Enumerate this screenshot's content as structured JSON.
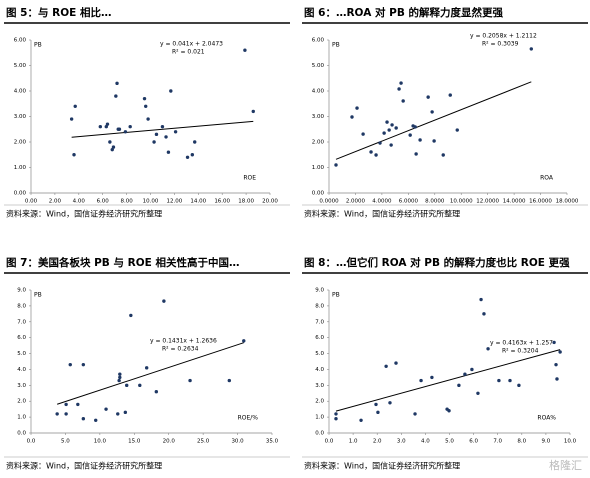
{
  "watermark": "格隆汇",
  "chart_data": [
    {
      "type": "scatter",
      "title": "图 5：与 ROE 相比…",
      "x_label": "ROE",
      "y_label": "PB",
      "color": "#1f3864",
      "source": "资料来源：Wind，国信证券经济研究所整理",
      "x": [
        3.4,
        3.7,
        3.6,
        5.8,
        6.3,
        6.4,
        6.6,
        6.8,
        6.9,
        7.2,
        7.1,
        7.3,
        7.4,
        7.9,
        8.3,
        9.5,
        9.6,
        9.8,
        10.3,
        10.5,
        11.0,
        11.3,
        11.5,
        11.7,
        12.1,
        13.1,
        13.5,
        13.7,
        17.9,
        18.6
      ],
      "values": [
        2.9,
        3.4,
        1.5,
        2.6,
        2.6,
        2.7,
        2.0,
        1.7,
        1.8,
        4.3,
        3.8,
        2.5,
        2.5,
        2.4,
        2.6,
        3.7,
        3.4,
        2.9,
        2.0,
        2.3,
        2.6,
        2.2,
        1.6,
        4.0,
        2.4,
        1.4,
        1.5,
        2.0,
        5.6,
        3.2
      ],
      "trendline": {
        "slope": 0.041,
        "intercept": 2.0473,
        "equation": "y = 0.041x + 2.0473",
        "r2": "R² = 0.021"
      },
      "xlim": [
        0,
        20
      ],
      "ylim": [
        0,
        6
      ],
      "xticks": [
        {
          "value": 0,
          "label": "0.00"
        },
        {
          "value": 2,
          "label": "2.00"
        },
        {
          "value": 4,
          "label": "4.00"
        },
        {
          "value": 6,
          "label": "6.00"
        },
        {
          "value": 8,
          "label": "8.00"
        },
        {
          "value": 10,
          "label": "10.00"
        },
        {
          "value": 12,
          "label": "12.00"
        },
        {
          "value": 14,
          "label": "14.00"
        },
        {
          "value": 16,
          "label": "16.00"
        },
        {
          "value": 18,
          "label": "18.00"
        },
        {
          "value": 20,
          "label": "20.00"
        }
      ],
      "yticks": [
        {
          "value": 0,
          "label": "0.00"
        },
        {
          "value": 1,
          "label": "1.00"
        },
        {
          "value": 2,
          "label": "2.00"
        },
        {
          "value": 3,
          "label": "3.00"
        },
        {
          "value": 4,
          "label": "4.00"
        },
        {
          "value": 5,
          "label": "5.00"
        },
        {
          "value": 6,
          "label": "6.00"
        }
      ]
    },
    {
      "type": "scatter",
      "title": "图 6：…ROA 对 PB 的解释力度显然更强",
      "x_label": "ROA",
      "y_label": "PB",
      "color": "#1f3864",
      "source": "资料来源：Wind，国信证券经济研究所整理",
      "x": [
        0.53,
        1.74,
        2.12,
        2.58,
        3.18,
        3.56,
        3.86,
        4.17,
        4.39,
        4.55,
        4.7,
        4.77,
        5.08,
        5.3,
        5.45,
        5.61,
        6.14,
        6.36,
        6.52,
        6.59,
        6.89,
        7.5,
        7.8,
        7.95,
        8.64,
        9.17,
        9.7,
        15.3
      ],
      "values": [
        1.1,
        2.98,
        3.33,
        2.31,
        1.61,
        1.49,
        1.96,
        2.35,
        2.78,
        2.47,
        1.88,
        2.67,
        2.55,
        4.08,
        4.31,
        3.61,
        2.27,
        2.63,
        2.59,
        1.53,
        2.08,
        3.76,
        3.18,
        2.04,
        1.49,
        3.84,
        2.47,
        5.65
      ],
      "trendline": {
        "slope": 0.2058,
        "intercept": 1.2112,
        "equation": "y = 0.2058x + 1.2112",
        "r2": "R² = 0.3039"
      },
      "xlim": [
        0,
        18
      ],
      "ylim": [
        0,
        6
      ],
      "xticks": [
        {
          "value": 0,
          "label": "0.0000"
        },
        {
          "value": 2,
          "label": "2.0000"
        },
        {
          "value": 4,
          "label": "4.0000"
        },
        {
          "value": 6,
          "label": "6.0000"
        },
        {
          "value": 8,
          "label": "8.0000"
        },
        {
          "value": 10,
          "label": "10.0000"
        },
        {
          "value": 12,
          "label": "12.0000"
        },
        {
          "value": 14,
          "label": "14.0000"
        },
        {
          "value": 16,
          "label": "16.0000"
        },
        {
          "value": 18,
          "label": "18.0000"
        }
      ],
      "yticks": [
        {
          "value": 0,
          "label": "0.00"
        },
        {
          "value": 1,
          "label": "1.00"
        },
        {
          "value": 2,
          "label": "2.00"
        },
        {
          "value": 3,
          "label": "3.00"
        },
        {
          "value": 4,
          "label": "4.00"
        },
        {
          "value": 5,
          "label": "5.00"
        },
        {
          "value": 6,
          "label": "6.00"
        }
      ]
    },
    {
      "type": "scatter",
      "title": "图 7：美国各板块 PB 与 ROE 相关性高于中国…",
      "x_label": "ROE/%",
      "y_label": "PB",
      "color": "#1f3864",
      "source": "资料来源：Wind，国信证券经济研究所整理",
      "x": [
        3.8,
        5.1,
        5.1,
        5.7,
        6.8,
        7.6,
        7.6,
        9.4,
        10.9,
        12.6,
        12.8,
        12.9,
        12.9,
        13.7,
        13.9,
        14.5,
        15.8,
        16.8,
        18.2,
        19.3,
        23.1,
        28.8,
        30.9
      ],
      "values": [
        1.2,
        1.8,
        1.2,
        4.3,
        1.8,
        4.3,
        0.9,
        0.8,
        1.5,
        1.2,
        3.3,
        3.7,
        3.5,
        1.3,
        3.0,
        7.4,
        3.0,
        4.1,
        2.6,
        8.3,
        3.3,
        3.3,
        5.8
      ],
      "trendline": {
        "slope": 0.1431,
        "intercept": 1.2636,
        "equation": "y = 0.1431x + 1.2636",
        "r2": "R² = 0.2634"
      },
      "xlim": [
        0,
        35
      ],
      "ylim": [
        0,
        9
      ],
      "xticks": [
        {
          "value": 0,
          "label": "0.0"
        },
        {
          "value": 5,
          "label": "5.0"
        },
        {
          "value": 10,
          "label": "10.0"
        },
        {
          "value": 15,
          "label": "15.0"
        },
        {
          "value": 20,
          "label": "20.0"
        },
        {
          "value": 25,
          "label": "25.0"
        },
        {
          "value": 30,
          "label": "30.0"
        },
        {
          "value": 35,
          "label": "35.0"
        }
      ],
      "yticks": [
        {
          "value": 0,
          "label": "0.0"
        },
        {
          "value": 1,
          "label": "1.0"
        },
        {
          "value": 2,
          "label": "2.0"
        },
        {
          "value": 3,
          "label": "3.0"
        },
        {
          "value": 4,
          "label": "4.0"
        },
        {
          "value": 5,
          "label": "5.0"
        },
        {
          "value": 6,
          "label": "6.0"
        },
        {
          "value": 7,
          "label": "7.0"
        },
        {
          "value": 8,
          "label": "8.0"
        },
        {
          "value": 9,
          "label": "9.0"
        }
      ]
    },
    {
      "type": "scatter",
      "title": "图 8：…但它们 ROA 对 PB 的解释力度也比 ROE 更强",
      "x_label": "ROA%",
      "y_label": "PB",
      "color": "#1f3864",
      "source": "资料来源：Wind，国信证券经济研究所整理",
      "x": [
        0.29,
        0.29,
        1.33,
        1.95,
        2.03,
        2.37,
        2.53,
        2.78,
        3.57,
        3.82,
        4.27,
        4.9,
        4.98,
        5.39,
        5.64,
        5.93,
        6.18,
        6.31,
        6.43,
        6.6,
        7.05,
        7.51,
        7.88,
        9.34,
        9.42,
        9.46,
        9.59
      ],
      "values": [
        1.2,
        0.9,
        0.8,
        1.8,
        1.3,
        4.2,
        1.9,
        4.4,
        1.2,
        3.3,
        3.5,
        1.5,
        1.4,
        3.0,
        3.7,
        4.0,
        2.5,
        8.4,
        7.5,
        5.3,
        3.3,
        3.3,
        3.0,
        5.7,
        4.3,
        3.4,
        5.1
      ],
      "trendline": {
        "slope": 0.4163,
        "intercept": 1.257,
        "equation": "y = 0.4163x + 1.257",
        "r2": "R² = 0.3204"
      },
      "xlim": [
        0,
        10
      ],
      "ylim": [
        0,
        9
      ],
      "xticks": [
        {
          "value": 0,
          "label": "0.0"
        },
        {
          "value": 1,
          "label": "1.0"
        },
        {
          "value": 2,
          "label": "2.0"
        },
        {
          "value": 3,
          "label": "3.0"
        },
        {
          "value": 4,
          "label": "4.0"
        },
        {
          "value": 5,
          "label": "5.0"
        },
        {
          "value": 6,
          "label": "6.0"
        },
        {
          "value": 7,
          "label": "7.0"
        },
        {
          "value": 8,
          "label": "8.0"
        },
        {
          "value": 9,
          "label": "9.0"
        },
        {
          "value": 10,
          "label": "10.0"
        }
      ],
      "yticks": [
        {
          "value": 0,
          "label": "0.0"
        },
        {
          "value": 1,
          "label": "1.0"
        },
        {
          "value": 2,
          "label": "2.0"
        },
        {
          "value": 3,
          "label": "3.0"
        },
        {
          "value": 4,
          "label": "4.0"
        },
        {
          "value": 5,
          "label": "5.0"
        },
        {
          "value": 6,
          "label": "6.0"
        },
        {
          "value": 7,
          "label": "7.0"
        },
        {
          "value": 8,
          "label": "8.0"
        },
        {
          "value": 9,
          "label": "9.0"
        }
      ]
    }
  ]
}
